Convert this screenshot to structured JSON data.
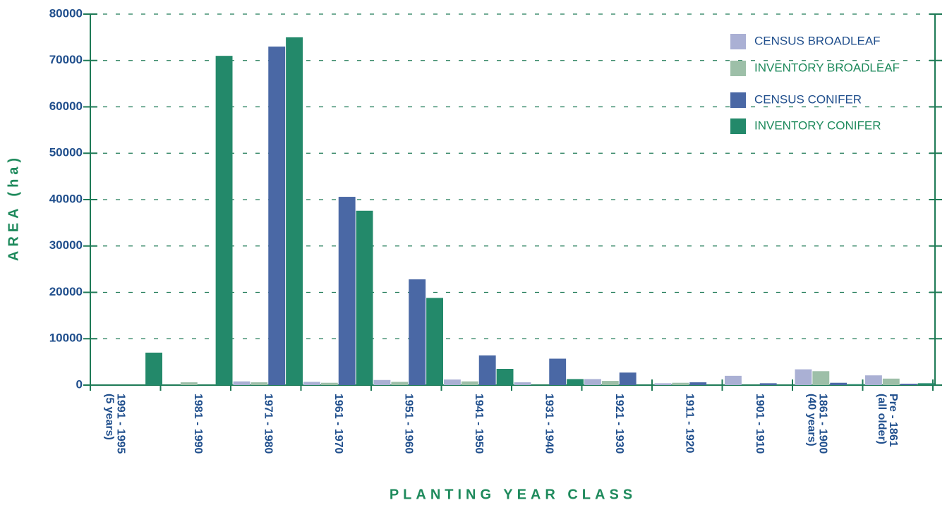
{
  "chart_data": {
    "type": "bar",
    "x_label": "PLANTING YEAR CLASS",
    "y_label": "AREA (ha)",
    "categories": [
      [
        "1991 - 1995",
        "(5 years)"
      ],
      [
        "1981 - 1990"
      ],
      [
        "1971 - 1980"
      ],
      [
        "1961 - 1970"
      ],
      [
        "1951 - 1960"
      ],
      [
        "1941 - 1950"
      ],
      [
        "1931 - 1940"
      ],
      [
        "1921 - 1930"
      ],
      [
        "1911 - 1920"
      ],
      [
        "1901 - 1910"
      ],
      [
        "1861 - 1900",
        "(40 years)"
      ],
      [
        "Pre - 1861",
        "(all older)"
      ]
    ],
    "series": [
      {
        "name": "CENSUS BROADLEAF",
        "color": "#aab0d4",
        "values": [
          0,
          0,
          800,
          700,
          1100,
          1200,
          600,
          1300,
          400,
          2000,
          3400,
          2100
        ]
      },
      {
        "name": "INVENTORY BROADLEAF",
        "color": "#9dbfa8",
        "values": [
          0,
          600,
          600,
          500,
          700,
          800,
          0,
          900,
          500,
          0,
          3000,
          1400
        ]
      },
      {
        "name": "CENSUS CONIFER",
        "color": "#4a68a5",
        "values": [
          0,
          0,
          73000,
          40600,
          22800,
          6400,
          5700,
          2700,
          600,
          400,
          500,
          300
        ]
      },
      {
        "name": "INVENTORY CONIFER",
        "color": "#23896a",
        "values": [
          7000,
          71000,
          75000,
          37600,
          18800,
          3500,
          1300,
          0,
          0,
          0,
          200,
          400
        ]
      }
    ],
    "ylim": [
      0,
      80000
    ],
    "yticks": [
      0,
      10000,
      20000,
      30000,
      40000,
      50000,
      60000,
      70000,
      80000
    ],
    "grid": true,
    "legend": "top-right"
  }
}
